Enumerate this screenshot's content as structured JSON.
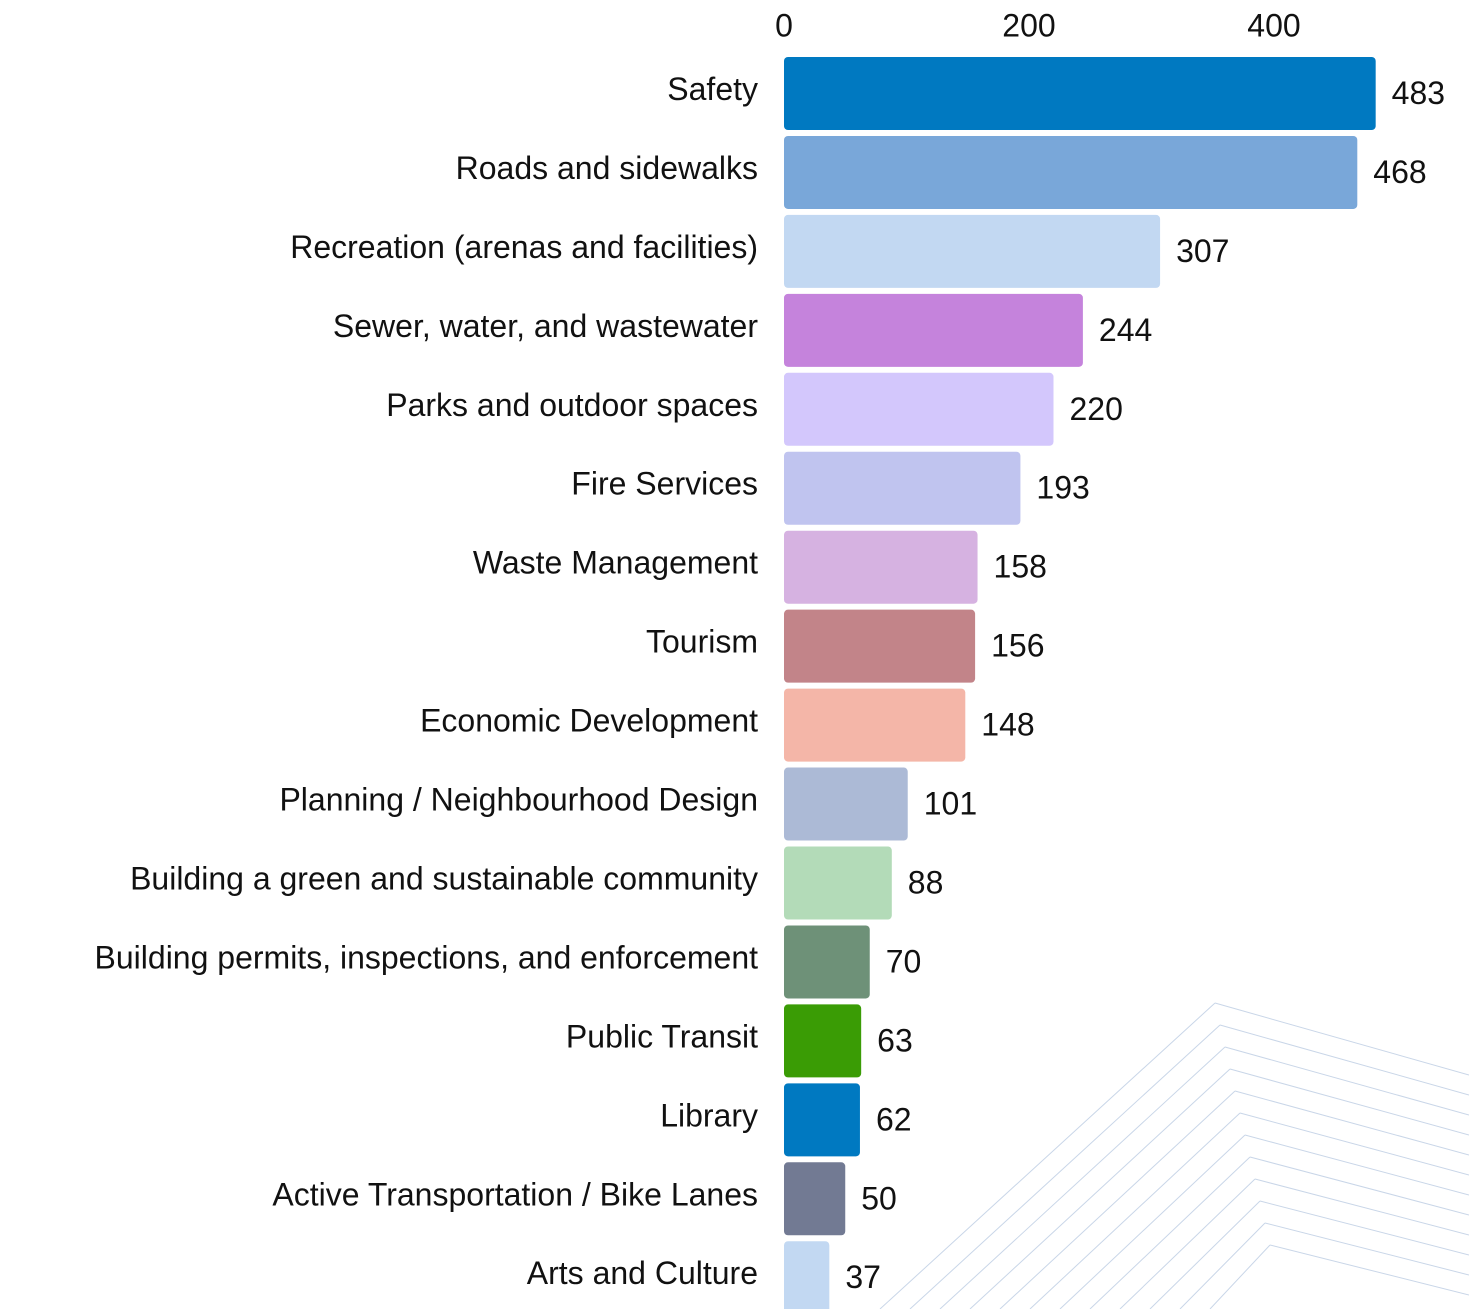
{
  "chart_data": {
    "type": "bar",
    "orientation": "horizontal",
    "categories": [
      "Safety",
      "Roads and sidewalks",
      "Recreation (arenas and facilities)",
      "Sewer, water, and wastewater",
      "Parks and outdoor spaces",
      "Fire Services",
      "Waste Management",
      "Tourism",
      "Economic Development",
      "Planning / Neighbourhood Design",
      "Building a green and sustainable community",
      "Building permits, inspections, and enforcement",
      "Public Transit",
      "Library",
      "Active Transportation / Bike Lanes",
      "Arts and Culture"
    ],
    "values": [
      483,
      468,
      307,
      244,
      220,
      193,
      158,
      156,
      148,
      101,
      88,
      70,
      63,
      62,
      50,
      37
    ],
    "colors": [
      "#0079c1",
      "#79a7d9",
      "#c2d8f2",
      "#c583dc",
      "#d3c7fc",
      "#c0c4ef",
      "#d6b2e1",
      "#c28489",
      "#f4b6a8",
      "#acbad6",
      "#b3dbb8",
      "#6e9178",
      "#3a9c05",
      "#0079c1",
      "#727a93",
      "#c2d8f2"
    ],
    "xlim": [
      0,
      500
    ],
    "xticks": [
      0,
      200,
      400
    ]
  }
}
